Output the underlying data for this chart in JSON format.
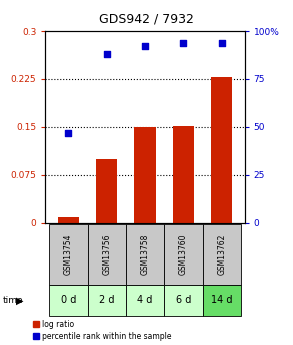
{
  "title": "GDS942 / 7932",
  "categories": [
    "GSM13754",
    "GSM13756",
    "GSM13758",
    "GSM13760",
    "GSM13762"
  ],
  "time_labels": [
    "0 d",
    "2 d",
    "4 d",
    "6 d",
    "14 d"
  ],
  "log_ratio": [
    0.008,
    0.1,
    0.15,
    0.152,
    0.228
  ],
  "percentile": [
    47,
    88,
    92,
    94,
    94
  ],
  "bar_color": "#cc2200",
  "point_color": "#0000cc",
  "ylim_left": [
    0,
    0.3
  ],
  "ylim_right": [
    0,
    100
  ],
  "yticks_left": [
    0,
    0.075,
    0.15,
    0.225,
    0.3
  ],
  "ytick_labels_left": [
    "0",
    "0.075",
    "0.15",
    "0.225",
    "0.3"
  ],
  "yticks_right": [
    0,
    25,
    50,
    75,
    100
  ],
  "ytick_labels_right": [
    "0",
    "25",
    "50",
    "75",
    "100%"
  ],
  "hlines": [
    0.075,
    0.15,
    0.225
  ],
  "bg_color": "#ffffff",
  "sample_label_bg": "#c8c8c8",
  "time_label_bg": "#ccffcc",
  "time_label_bg_last": "#66dd66",
  "bar_width": 0.55,
  "legend_log_ratio": "log ratio",
  "legend_percentile": "percentile rank within the sample"
}
